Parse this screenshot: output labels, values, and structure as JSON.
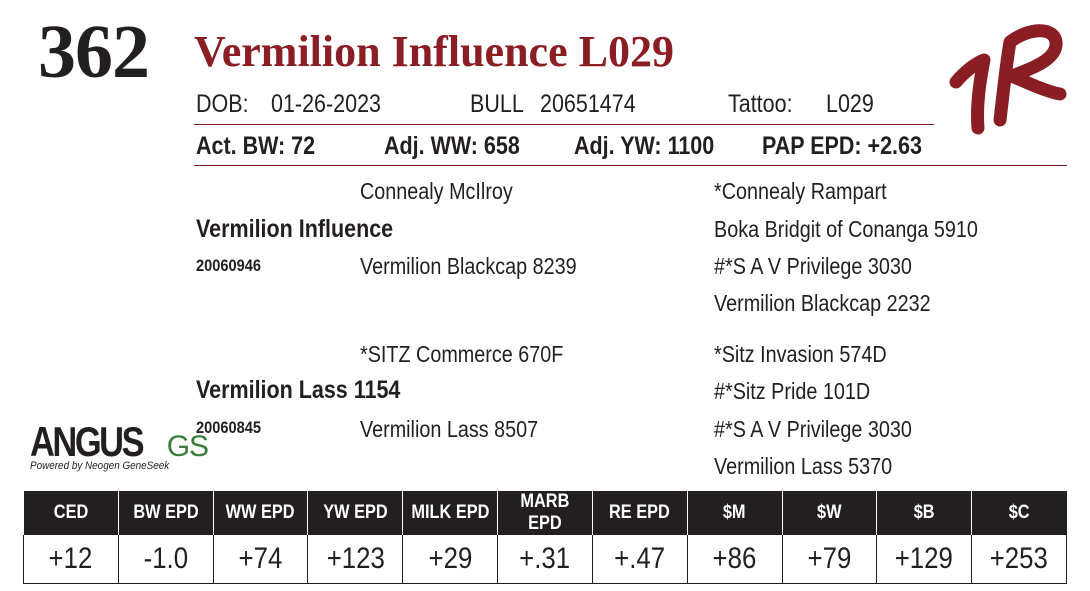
{
  "lot": {
    "number": "362",
    "name": "Vermilion Influence L029"
  },
  "info_row1": {
    "dob_label": "DOB:",
    "dob": "01-26-2023",
    "sex": "BULL",
    "registration": "20651474",
    "tattoo_label": "Tattoo:",
    "tattoo": "L029"
  },
  "info_row2": {
    "bw": "Act. BW: 72",
    "ww": "Adj. WW: 658",
    "yw": "Adj. YW: 1100",
    "pap": "PAP EPD: +2.63"
  },
  "pedigree": {
    "sire": {
      "name": "Vermilion Influence",
      "reg": "20060946"
    },
    "dam": {
      "name": "Vermilion Lass 1154",
      "reg": "20060845"
    },
    "sire_sire": "Connealy McIlroy",
    "sire_dam": "Vermilion Blackcap 8239",
    "dam_sire": "*SITZ Commerce 670F",
    "dam_dam": "Vermilion Lass 8507",
    "ggp": [
      "*Connealy Rampart",
      "Boka Bridgit of Conanga 5910",
      "#*S A V Privilege 3030",
      "Vermilion Blackcap 2232",
      "*Sitz Invasion 574D",
      "#*Sitz Pride 101D",
      "#*S A V Privilege 3030",
      "Vermilion Lass 5370"
    ]
  },
  "logo": {
    "main": "ANGUS",
    "suffix": "GS",
    "tagline": "Powered by Neogen GeneSeek"
  },
  "epd_headers": [
    "CED",
    "BW EPD",
    "WW EPD",
    "YW EPD",
    "MILK EPD",
    "MARB EPD",
    "RE EPD",
    "$M",
    "$W",
    "$B",
    "$C"
  ],
  "epd_values": [
    "+12",
    "-1.0",
    "+74",
    "+123",
    "+29",
    "+.31",
    "+.47",
    "+86",
    "+79",
    "+129",
    "+253"
  ],
  "colors": {
    "title": "#8b1d24",
    "header_bg": "#231f20",
    "logo_green": "#3a7d3a",
    "mark": "#8b1d24"
  }
}
